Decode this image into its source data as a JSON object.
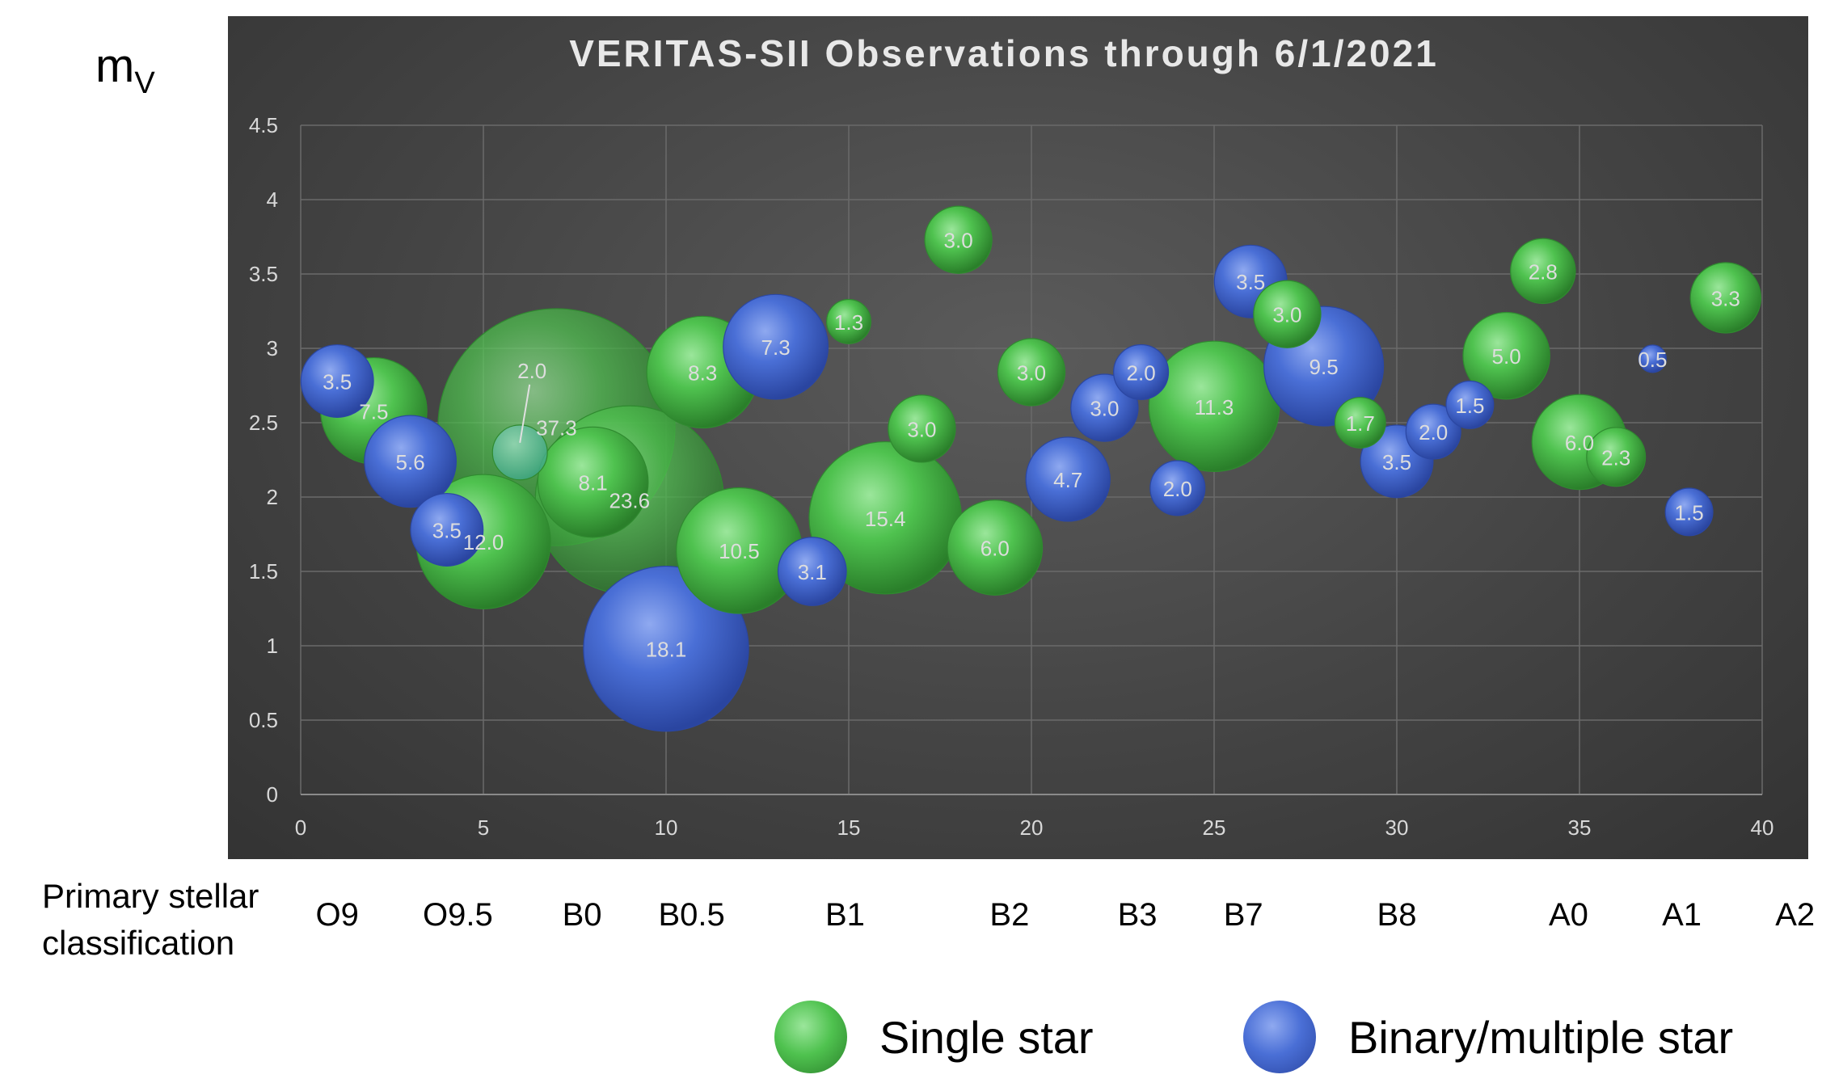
{
  "y_axis_symbol": {
    "main": "m",
    "sub": "V"
  },
  "x_caption": "Primary stellar\nclassification",
  "spectral_classes": [
    {
      "label": "O9",
      "x": 1
    },
    {
      "label": "O9.5",
      "x": 4.3
    },
    {
      "label": "B0",
      "x": 7.7
    },
    {
      "label": "B0.5",
      "x": 10.7
    },
    {
      "label": "B1",
      "x": 14.9
    },
    {
      "label": "B2",
      "x": 19.4
    },
    {
      "label": "B3",
      "x": 22.9
    },
    {
      "label": "B7",
      "x": 25.8
    },
    {
      "label": "B8",
      "x": 30
    },
    {
      "label": "A0",
      "x": 34.7
    },
    {
      "label": "A1",
      "x": 37.8
    },
    {
      "label": "A2",
      "x": 40.9
    }
  ],
  "legend": {
    "single": "Single star",
    "binary": "Binary/multiple star"
  },
  "colors": {
    "single": "#4fc24f",
    "single_dark": "#2f8a2f",
    "binary": "#4a6fd6",
    "binary_dark": "#2b47a3",
    "grid": "#6a6a6a",
    "tick_text": "#d8d8d8",
    "title_text": "#e8e8e8",
    "bubble_text": "#dddddd"
  },
  "chart_data": {
    "type": "bubble",
    "title": "VERITAS-SII Observations through 6/1/2021",
    "xlim": [
      0,
      40
    ],
    "ylim": [
      0,
      4.5
    ],
    "x_ticks": [
      "0",
      "5",
      "10",
      "15",
      "20",
      "25",
      "30",
      "35",
      "40"
    ],
    "y_ticks": [
      "0",
      "0.5",
      "1",
      "1.5",
      "2",
      "2.5",
      "3",
      "3.5",
      "4",
      "4.5"
    ],
    "grid": true,
    "series": [
      {
        "name": "Single star",
        "points": [
          {
            "x": 2,
            "y": 2.58,
            "size": 7.5,
            "label": "7.5"
          },
          {
            "x": 5,
            "y": 1.7,
            "size": 12.0,
            "label": "12.0"
          },
          {
            "x": 7,
            "y": 2.47,
            "size": 37.3,
            "label": "37.3"
          },
          {
            "x": 8,
            "y": 2.1,
            "size": 8.1,
            "label": "8.1"
          },
          {
            "x": 9,
            "y": 1.98,
            "size": 23.6,
            "label": "23.6"
          },
          {
            "x": 11,
            "y": 2.84,
            "size": 8.3,
            "label": "8.3"
          },
          {
            "x": 12,
            "y": 1.64,
            "size": 10.5,
            "label": "10.5"
          },
          {
            "x": 15,
            "y": 3.18,
            "size": 1.3,
            "label": "1.3"
          },
          {
            "x": 16,
            "y": 1.86,
            "size": 15.4,
            "label": "15.4"
          },
          {
            "x": 17,
            "y": 2.46,
            "size": 3.0,
            "label": "3.0"
          },
          {
            "x": 18,
            "y": 3.73,
            "size": 3.0,
            "label": "3.0"
          },
          {
            "x": 19,
            "y": 1.66,
            "size": 6.0,
            "label": "6.0"
          },
          {
            "x": 20,
            "y": 2.84,
            "size": 3.0,
            "label": "3.0"
          },
          {
            "x": 25,
            "y": 2.61,
            "size": 11.3,
            "label": "11.3"
          },
          {
            "x": 27,
            "y": 3.23,
            "size": 3.0,
            "label": "3.0"
          },
          {
            "x": 29,
            "y": 2.5,
            "size": 1.7,
            "label": "1.7"
          },
          {
            "x": 33,
            "y": 2.95,
            "size": 5.0,
            "label": "5.0"
          },
          {
            "x": 34,
            "y": 3.52,
            "size": 2.8,
            "label": "2.8"
          },
          {
            "x": 35,
            "y": 2.37,
            "size": 6.0,
            "label": "6.0"
          },
          {
            "x": 36,
            "y": 2.27,
            "size": 2.3,
            "label": "2.3"
          },
          {
            "x": 39,
            "y": 3.34,
            "size": 3.3,
            "label": "3.3"
          }
        ]
      },
      {
        "name": "Binary/multiple star",
        "points": [
          {
            "x": 1,
            "y": 2.78,
            "size": 3.5,
            "label": "3.5"
          },
          {
            "x": 3,
            "y": 2.24,
            "size": 5.6,
            "label": "5.6"
          },
          {
            "x": 4,
            "y": 1.78,
            "size": 3.5,
            "label": "3.5"
          },
          {
            "x": 10,
            "y": 0.98,
            "size": 18.1,
            "label": "18.1"
          },
          {
            "x": 13,
            "y": 3.01,
            "size": 7.3,
            "label": "7.3"
          },
          {
            "x": 14,
            "y": 1.5,
            "size": 3.1,
            "label": "3.1"
          },
          {
            "x": 21,
            "y": 2.12,
            "size": 4.7,
            "label": "4.7"
          },
          {
            "x": 22,
            "y": 2.6,
            "size": 3.0,
            "label": "3.0"
          },
          {
            "x": 23,
            "y": 2.84,
            "size": 2.0,
            "label": "2.0"
          },
          {
            "x": 24,
            "y": 2.06,
            "size": 2.0,
            "label": "2.0"
          },
          {
            "x": 26,
            "y": 3.45,
            "size": 3.5,
            "label": "3.5"
          },
          {
            "x": 28,
            "y": 2.88,
            "size": 9.5,
            "label": "9.5"
          },
          {
            "x": 30,
            "y": 2.24,
            "size": 3.5,
            "label": "3.5"
          },
          {
            "x": 31,
            "y": 2.44,
            "size": 2.0,
            "label": "2.0"
          },
          {
            "x": 32,
            "y": 2.62,
            "size": 1.5,
            "label": "1.5"
          },
          {
            "x": 37,
            "y": 2.93,
            "size": 0.5,
            "label": "0.5"
          },
          {
            "x": 38,
            "y": 1.9,
            "size": 1.5,
            "label": "1.5"
          }
        ]
      },
      {
        "name": "",
        "points": [
          {
            "x": 6,
            "y": 2.3,
            "size": 2.0,
            "label": "2.0",
            "callout": true
          }
        ]
      }
    ]
  }
}
